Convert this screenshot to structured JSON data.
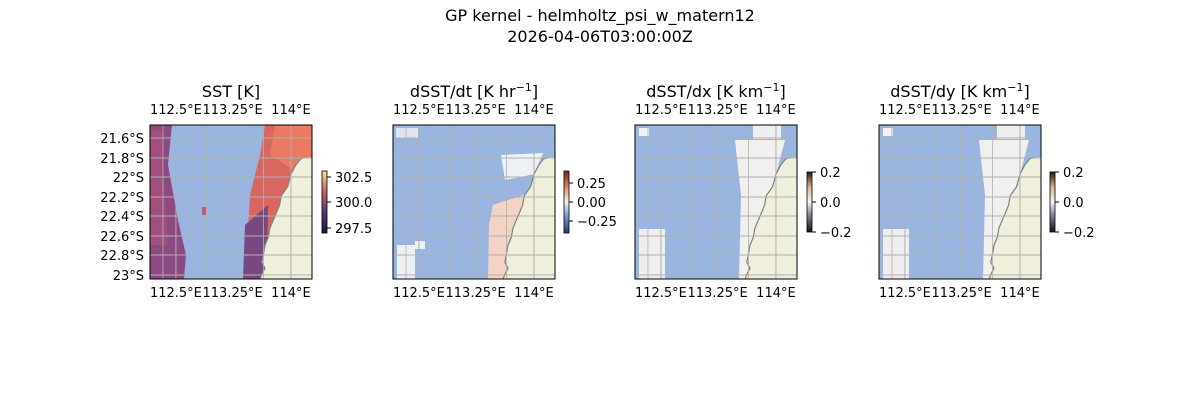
{
  "figure": {
    "title": "GP kernel - helmholtz_psi_w_matern12",
    "subtitle": "2026-04-06T03:00:00Z"
  },
  "colors": {
    "land": "#efefdb",
    "ocean": "#9ab6e0",
    "coast": "#808080",
    "grid": "#b0b0b0"
  },
  "chart_data": [
    {
      "type": "heatmap",
      "title": "SST [K]",
      "x_ticks": [
        "112.5°E",
        "113.25°E",
        "114°E"
      ],
      "y_ticks": [
        "21.6°S",
        "21.8°S",
        "22°S",
        "22.2°S",
        "22.4°S",
        "22.6°S",
        "22.8°S",
        "23°S"
      ],
      "xlim": [
        112.5,
        114.0
      ],
      "ylim": [
        -23.0,
        -21.55
      ],
      "colorbar": {
        "ticks": [
          "302.5",
          "300.0",
          "297.5"
        ],
        "range": [
          296.8,
          303.5
        ]
      },
      "colormap": "thermal",
      "approx_values": {
        "west_coastal_band": 298.2,
        "offshore_east": 302.8
      }
    },
    {
      "type": "heatmap",
      "title": "dSST/dt [K hr⁻¹]",
      "title_base": "dSST/dt [K hr",
      "title_sup": "−1",
      "title_end": "]",
      "x_ticks": [
        "112.5°E",
        "113.25°E",
        "114°E"
      ],
      "xlim": [
        112.5,
        114.0
      ],
      "ylim": [
        -23.0,
        -21.55
      ],
      "colorbar": {
        "ticks": [
          "0.25",
          "0.00",
          "−0.25"
        ],
        "range": [
          -0.4,
          0.4
        ]
      },
      "colormap": "diverging",
      "approx_values": {
        "typical": 0.0,
        "nearshore_max": 0.08
      }
    },
    {
      "type": "heatmap",
      "title": "dSST/dx [K km⁻¹]",
      "title_base": "dSST/dx [K km",
      "title_sup": "−1",
      "title_end": "]",
      "x_ticks": [
        "112.5°E",
        "113.25°E",
        "114°E"
      ],
      "xlim": [
        112.5,
        114.0
      ],
      "ylim": [
        -23.0,
        -21.55
      ],
      "colorbar": {
        "ticks": [
          "0.2",
          "0.0",
          "−0.2"
        ],
        "range": [
          -0.2,
          0.2
        ]
      },
      "colormap": "gray-white-copper",
      "approx_values": {
        "typical": 0.0
      }
    },
    {
      "type": "heatmap",
      "title": "dSST/dy [K km⁻¹]",
      "title_base": "dSST/dy [K km",
      "title_sup": "−1",
      "title_end": "]",
      "x_ticks": [
        "112.5°E",
        "113.25°E",
        "114°E"
      ],
      "xlim": [
        112.5,
        114.0
      ],
      "ylim": [
        -23.0,
        -21.55
      ],
      "colorbar": {
        "ticks": [
          "0.2",
          "0.0",
          "−0.2"
        ],
        "range": [
          -0.2,
          0.2
        ]
      },
      "colormap": "gray-white-copper",
      "approx_values": {
        "typical": 0.0
      }
    }
  ]
}
